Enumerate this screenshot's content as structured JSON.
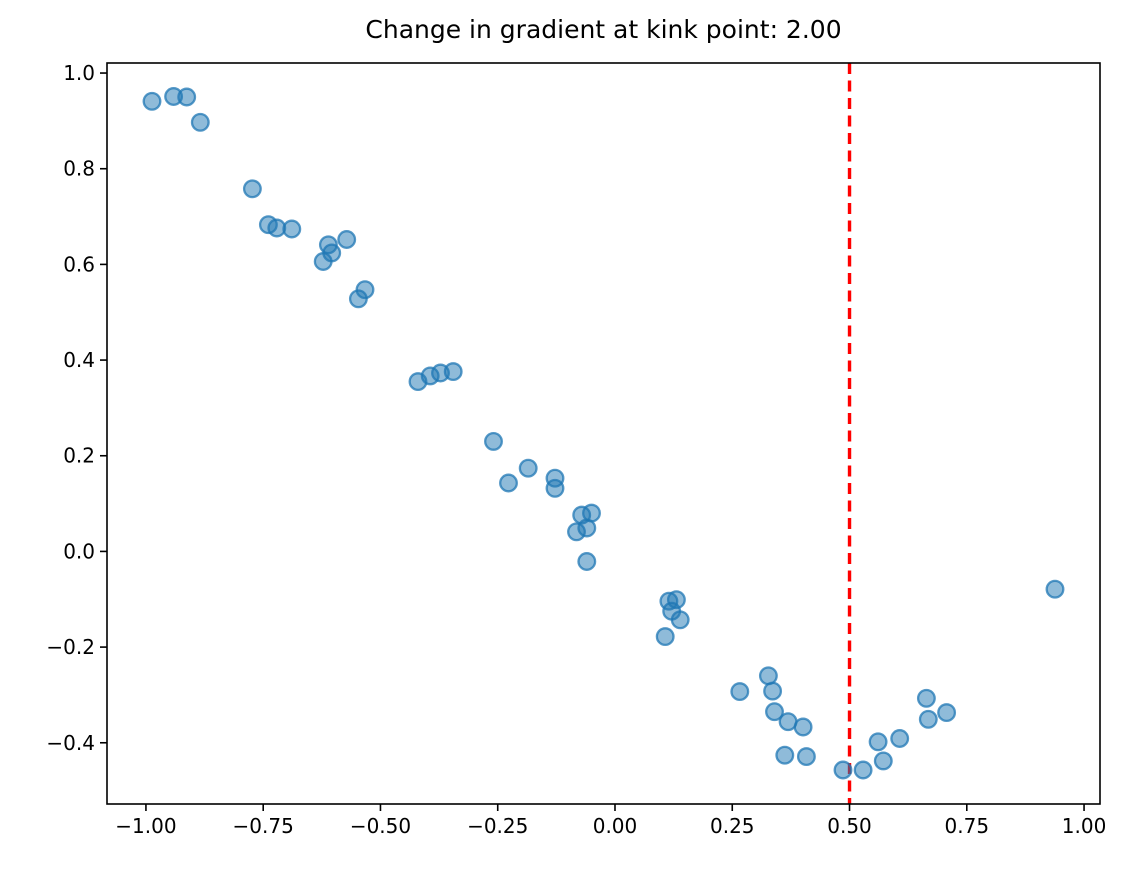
{
  "figure": {
    "title": "Change in gradient at kink point: 2.00"
  },
  "chart_data": {
    "type": "scatter",
    "title": "Change in gradient at kink point: 2.00",
    "xlabel": "",
    "ylabel": "",
    "xlim": [
      -1.083,
      1.034
    ],
    "ylim": [
      -0.528,
      1.021
    ],
    "grid": false,
    "legend": null,
    "x_ticks": [
      {
        "value": -1.0,
        "label": "−1.00"
      },
      {
        "value": -0.75,
        "label": "−0.75"
      },
      {
        "value": -0.5,
        "label": "−0.50"
      },
      {
        "value": -0.25,
        "label": "−0.25"
      },
      {
        "value": 0.0,
        "label": "0.00"
      },
      {
        "value": 0.25,
        "label": "0.25"
      },
      {
        "value": 0.5,
        "label": "0.50"
      },
      {
        "value": 0.75,
        "label": "0.75"
      },
      {
        "value": 1.0,
        "label": "1.00"
      }
    ],
    "y_ticks": [
      {
        "value": 1.0,
        "label": "1.0"
      },
      {
        "value": 0.8,
        "label": "0.8"
      },
      {
        "value": 0.6,
        "label": "0.6"
      },
      {
        "value": 0.4,
        "label": "0.4"
      },
      {
        "value": 0.2,
        "label": "0.2"
      },
      {
        "value": 0.0,
        "label": "0.0"
      },
      {
        "value": -0.2,
        "label": "−0.2"
      },
      {
        "value": -0.4,
        "label": "−0.4"
      }
    ],
    "marker": {
      "color": "#1f77b4",
      "fill_opacity": 0.5,
      "edge_opacity": 0.75
    },
    "vline": {
      "x": 0.5,
      "color": "#ff0000",
      "style": "dashed"
    },
    "points": [
      [
        -0.987,
        0.941
      ],
      [
        -0.941,
        0.951
      ],
      [
        -0.913,
        0.95
      ],
      [
        -0.884,
        0.897
      ],
      [
        -0.773,
        0.758
      ],
      [
        -0.739,
        0.683
      ],
      [
        -0.721,
        0.676
      ],
      [
        -0.689,
        0.674
      ],
      [
        -0.572,
        0.652
      ],
      [
        -0.611,
        0.641
      ],
      [
        -0.604,
        0.624
      ],
      [
        -0.622,
        0.606
      ],
      [
        -0.533,
        0.547
      ],
      [
        -0.547,
        0.528
      ],
      [
        -0.42,
        0.355
      ],
      [
        -0.394,
        0.367
      ],
      [
        -0.372,
        0.373
      ],
      [
        -0.345,
        0.376
      ],
      [
        -0.259,
        0.23
      ],
      [
        -0.227,
        0.143
      ],
      [
        -0.185,
        0.174
      ],
      [
        -0.128,
        0.153
      ],
      [
        -0.128,
        0.132
      ],
      [
        -0.071,
        0.076
      ],
      [
        -0.05,
        0.08
      ],
      [
        -0.06,
        0.049
      ],
      [
        -0.082,
        0.041
      ],
      [
        -0.06,
        -0.021
      ],
      [
        0.115,
        -0.104
      ],
      [
        0.131,
        -0.101
      ],
      [
        0.121,
        -0.125
      ],
      [
        0.139,
        -0.143
      ],
      [
        0.107,
        -0.178
      ],
      [
        0.266,
        -0.293
      ],
      [
        0.327,
        -0.26
      ],
      [
        0.336,
        -0.292
      ],
      [
        0.34,
        -0.335
      ],
      [
        0.369,
        -0.356
      ],
      [
        0.401,
        -0.367
      ],
      [
        0.362,
        -0.426
      ],
      [
        0.408,
        -0.429
      ],
      [
        0.486,
        -0.457
      ],
      [
        0.529,
        -0.457
      ],
      [
        0.572,
        -0.438
      ],
      [
        0.561,
        -0.398
      ],
      [
        0.607,
        -0.391
      ],
      [
        0.664,
        -0.307
      ],
      [
        0.668,
        -0.351
      ],
      [
        0.707,
        -0.337
      ],
      [
        0.938,
        -0.079
      ]
    ]
  }
}
